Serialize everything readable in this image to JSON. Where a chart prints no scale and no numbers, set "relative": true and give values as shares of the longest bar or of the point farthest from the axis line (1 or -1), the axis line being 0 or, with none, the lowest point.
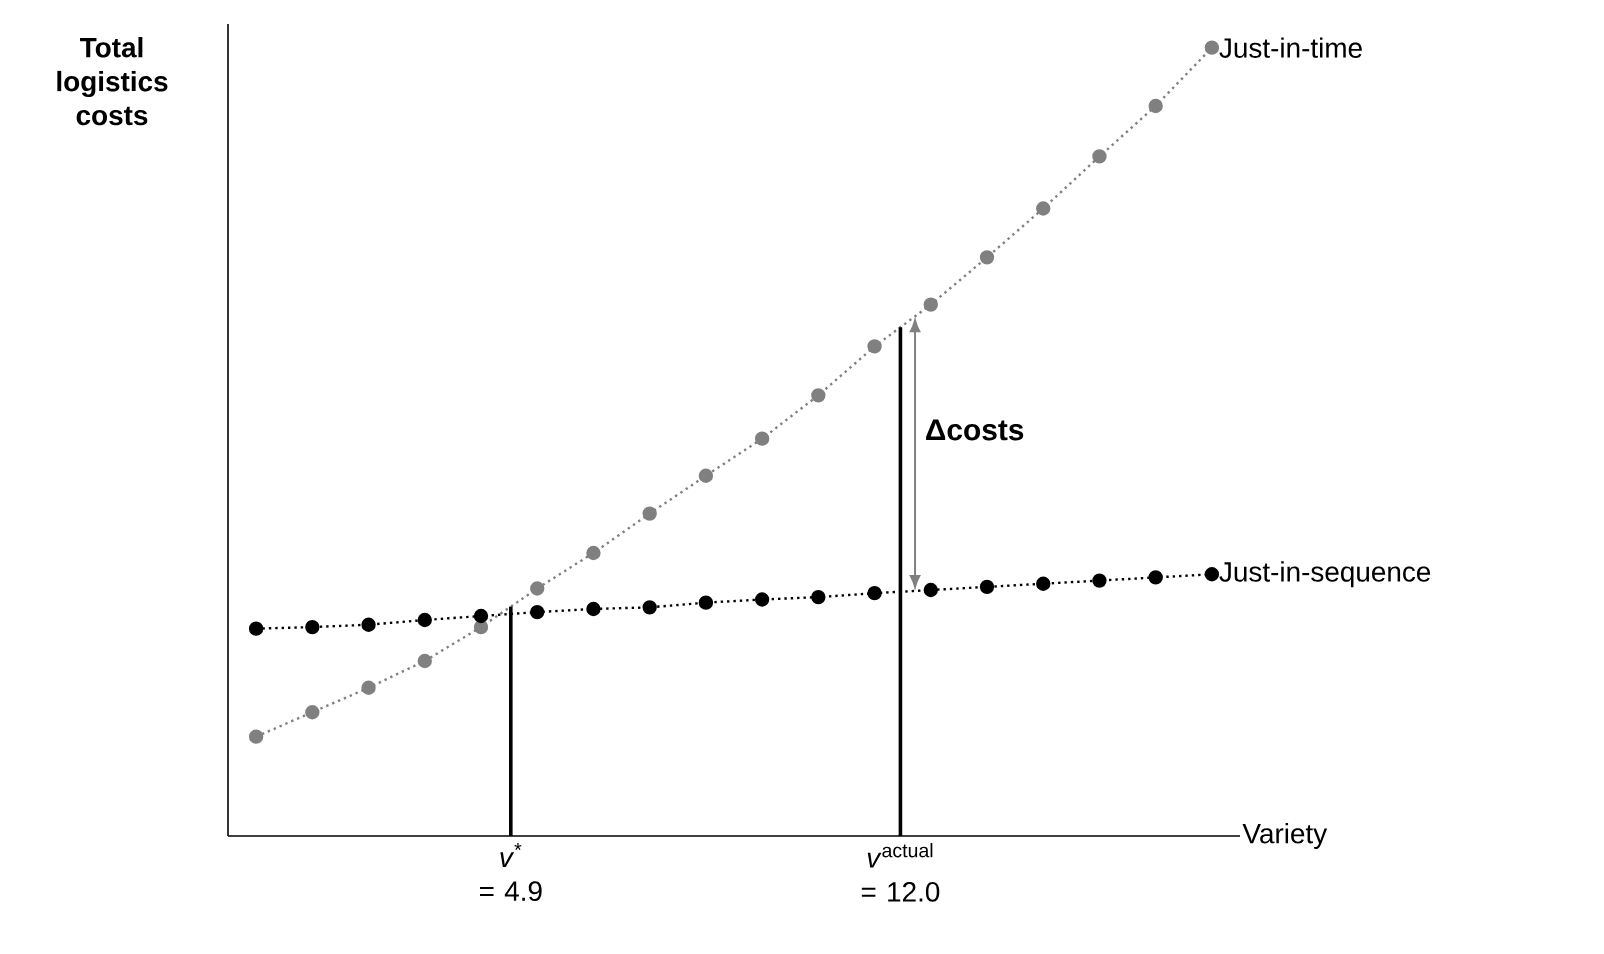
{
  "chart_data": {
    "type": "line",
    "relative": true,
    "ylabel": "Total logistics costs",
    "xlabel": "Variety",
    "categories": [
      null,
      null,
      null,
      null,
      null,
      null,
      null,
      null,
      null,
      null,
      null,
      null,
      null,
      null,
      null,
      null,
      null,
      null
    ],
    "series": [
      {
        "name": "Just-in-time",
        "color": "#808080",
        "values": [
          0.126,
          0.157,
          0.188,
          0.222,
          0.265,
          0.314,
          0.359,
          0.409,
          0.457,
          0.504,
          0.559,
          0.621,
          0.674,
          0.734,
          0.796,
          0.862,
          0.926,
          1
        ]
      },
      {
        "name": "Just-in-sequence",
        "color": "#000000",
        "values": [
          0.263,
          0.265,
          0.268,
          0.274,
          0.279,
          0.284,
          0.288,
          0.29,
          0.296,
          0.3,
          0.303,
          0.308,
          0.312,
          0.316,
          0.32,
          0.324,
          0.328,
          0.332
        ]
      }
    ],
    "annotations": [
      "*v*$^{*}$ = 4.9",
      "*v*$^{actual}$ = 12.0",
      "**Δcosts**"
    ],
    "marker": "circle",
    "line_style": "dotted"
  }
}
